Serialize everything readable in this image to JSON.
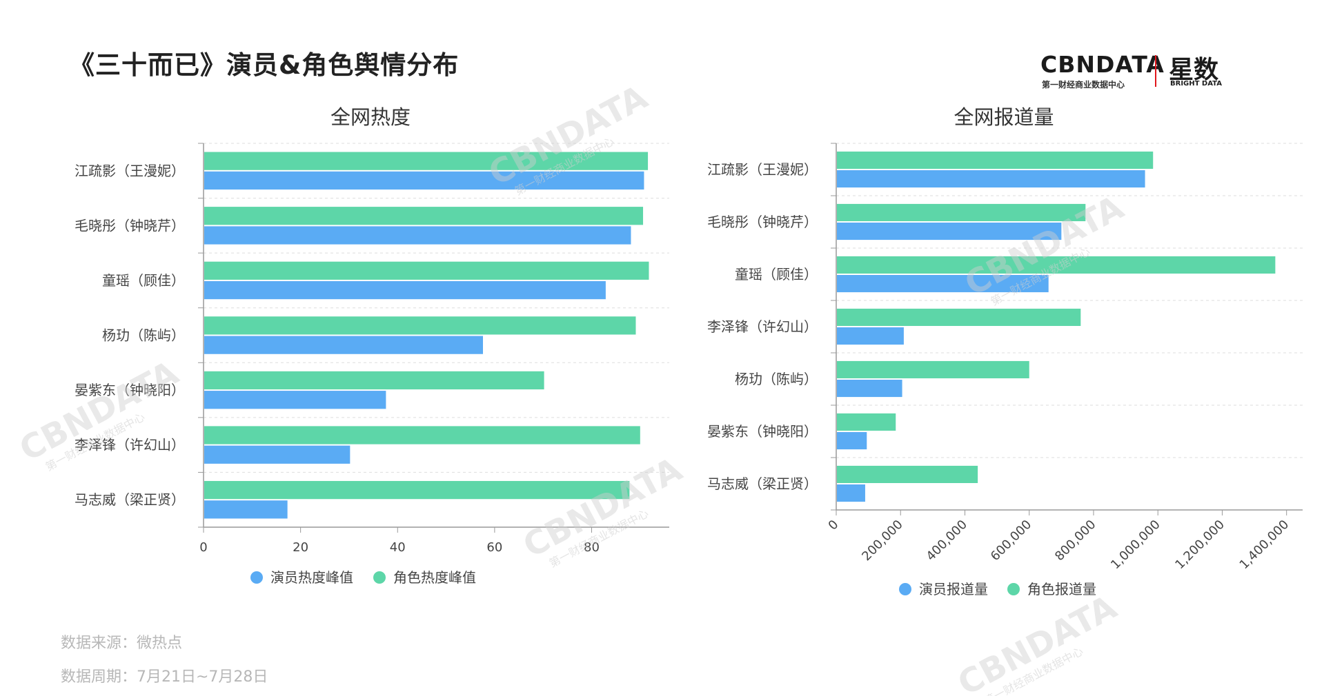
{
  "page": {
    "title": "《三十而已》演员&角色舆情分布",
    "source": "数据来源：微热点",
    "period": "数据周期：7月21日~7月28日"
  },
  "logo": {
    "brand": "CBNDATA",
    "brand_sub": "第一财经商业数据中心",
    "partner": "星数",
    "partner_sub": "BRIGHT DATA"
  },
  "colors": {
    "actor": "#5aabf4",
    "role": "#5dd6a8",
    "axis": "#999999",
    "grid": "#dddddd"
  },
  "chart_data": [
    {
      "type": "bar",
      "orientation": "horizontal",
      "title": "全网热度",
      "categories": [
        "江疏影（王漫妮）",
        "毛晓彤（钟晓芹）",
        "童瑶（顾佳）",
        "杨玏（陈屿）",
        "晏紫东（钟晓阳）",
        "李泽锋（许幻山）",
        "马志威（梁正贤）"
      ],
      "series": [
        {
          "name": "演员热度峰值",
          "color": "#5aabf4",
          "values": [
            90.8,
            88.1,
            82.9,
            57.6,
            37.6,
            30.2,
            17.3
          ]
        },
        {
          "name": "角色热度峰值",
          "color": "#5dd6a8",
          "values": [
            91.6,
            90.6,
            91.8,
            89.1,
            70.2,
            90.0,
            87.8
          ]
        }
      ],
      "xlim": [
        0,
        96
      ],
      "xticks": [
        0,
        20,
        40,
        60,
        80
      ],
      "xtick_labels": [
        "0",
        "20",
        "40",
        "60",
        "80"
      ],
      "grid": true,
      "legend": "bottom"
    },
    {
      "type": "bar",
      "orientation": "horizontal",
      "title": "全网报道量",
      "categories": [
        "江疏影（王漫妮）",
        "毛晓彤（钟晓芹）",
        "童瑶（顾佳）",
        "李泽锋（许幻山）",
        "杨玏（陈屿）",
        "晏紫东（钟晓阳）",
        "马志威（梁正贤）"
      ],
      "series": [
        {
          "name": "演员报道量",
          "color": "#5aabf4",
          "values": [
            960000,
            700000,
            660000,
            210000,
            205000,
            95000,
            90000
          ]
        },
        {
          "name": "角色报道量",
          "color": "#5dd6a8",
          "values": [
            985000,
            775000,
            1365000,
            760000,
            600000,
            185000,
            440000
          ]
        }
      ],
      "xlim": [
        0,
        1450000
      ],
      "xticks": [
        0,
        200000,
        400000,
        600000,
        800000,
        1000000,
        1200000,
        1400000
      ],
      "xtick_labels": [
        "0",
        "200,000",
        "400,000",
        "600,000",
        "800,000",
        "1,000,000",
        "1,200,000",
        "1,400,000"
      ],
      "grid": true,
      "legend": "bottom"
    }
  ]
}
